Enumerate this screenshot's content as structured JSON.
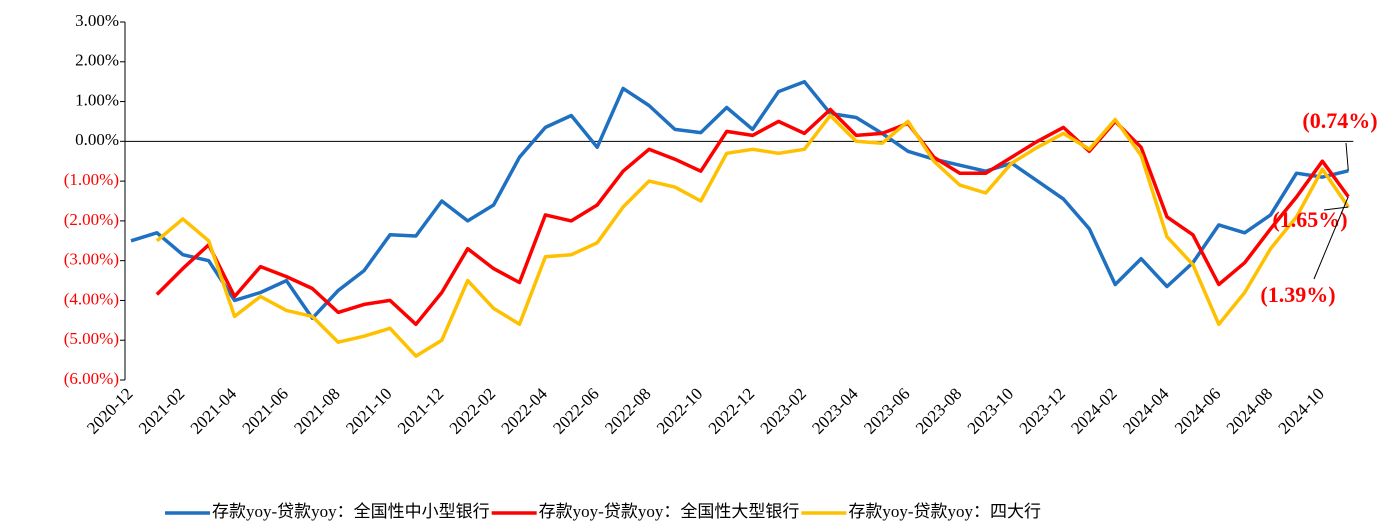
{
  "chart_data": {
    "type": "line",
    "categories": [
      "2020-12",
      null,
      "2021-02",
      null,
      "2021-04",
      null,
      "2021-06",
      null,
      "2021-08",
      null,
      "2021-10",
      null,
      "2021-12",
      null,
      "2022-02",
      null,
      "2022-04",
      null,
      "2022-06",
      null,
      "2022-08",
      null,
      "2022-10",
      null,
      "2022-12",
      null,
      "2023-02",
      null,
      "2023-04",
      null,
      "2023-06",
      null,
      "2023-08",
      null,
      "2023-10",
      null,
      "2023-12",
      null,
      "2024-02",
      null,
      "2024-04",
      null,
      "2024-06",
      null,
      "2024-08",
      null,
      "2024-10",
      null
    ],
    "series": [
      {
        "name": "存款yoy-贷款yoy：全国性中小型银行",
        "color": "#1f70c1",
        "values": [
          -2.5,
          -2.3,
          -2.85,
          -3.0,
          -4.0,
          -3.8,
          -3.5,
          -4.45,
          -3.75,
          -3.25,
          -2.35,
          -2.38,
          -1.5,
          -2.0,
          -1.6,
          -0.4,
          0.35,
          0.65,
          -0.15,
          1.33,
          0.9,
          0.3,
          0.22,
          0.85,
          0.3,
          1.25,
          1.5,
          0.7,
          0.6,
          0.2,
          -0.25,
          -0.45,
          -0.6,
          -0.75,
          -0.55,
          -1.0,
          -1.45,
          -2.2,
          -3.6,
          -2.95,
          -3.65,
          -3.05,
          -2.1,
          -2.3,
          -1.85,
          -0.8,
          -0.9,
          -0.74
        ]
      },
      {
        "name": "存款yoy-贷款yoy：全国性大型银行",
        "color": "#ff0000",
        "values": [
          null,
          -3.85,
          -3.2,
          -2.6,
          -3.9,
          -3.15,
          -3.4,
          -3.7,
          -4.3,
          -4.1,
          -4.0,
          -4.6,
          -3.8,
          -2.7,
          -3.2,
          -3.55,
          -1.85,
          -2.0,
          -1.6,
          -0.75,
          -0.2,
          -0.45,
          -0.75,
          0.25,
          0.15,
          0.5,
          0.2,
          0.8,
          0.15,
          0.2,
          0.45,
          -0.4,
          -0.8,
          -0.8,
          -0.4,
          0.0,
          0.35,
          -0.25,
          0.5,
          -0.15,
          -1.9,
          -2.35,
          -3.6,
          -3.05,
          -2.2,
          -1.4,
          -0.5,
          -1.39
        ]
      },
      {
        "name": "存款yoy-贷款yoy：四大行",
        "color": "#ffc000",
        "values": [
          null,
          -2.5,
          -1.95,
          -2.5,
          -4.4,
          -3.9,
          -4.25,
          -4.4,
          -5.05,
          -4.9,
          -4.7,
          -5.4,
          -5.0,
          -3.5,
          -4.2,
          -4.6,
          -2.9,
          -2.85,
          -2.55,
          -1.65,
          -1.0,
          -1.15,
          -1.5,
          -0.3,
          -0.2,
          -0.3,
          -0.2,
          0.65,
          0.0,
          -0.05,
          0.5,
          -0.5,
          -1.1,
          -1.3,
          -0.55,
          -0.15,
          0.2,
          -0.2,
          0.55,
          -0.35,
          -2.4,
          -3.1,
          -4.6,
          -3.8,
          -2.7,
          -1.9,
          -0.7,
          -1.65
        ]
      }
    ],
    "ylim": [
      -6,
      3
    ],
    "yticks": [
      {
        "value": 3,
        "label": "3.00%"
      },
      {
        "value": 2,
        "label": "2.00%"
      },
      {
        "value": 1,
        "label": "1.00%"
      },
      {
        "value": 0,
        "label": "0.00%"
      },
      {
        "value": -1,
        "label": "(1.00%)"
      },
      {
        "value": -2,
        "label": "(2.00%)"
      },
      {
        "value": -3,
        "label": "(3.00%)"
      },
      {
        "value": -4,
        "label": "(4.00%)"
      },
      {
        "value": -5,
        "label": "(5.00%)"
      },
      {
        "value": -6,
        "label": "(6.00%)"
      }
    ],
    "negative_tick_color": "#ff0000",
    "annotations": [
      {
        "text": "(0.74%)",
        "series": 0
      },
      {
        "text": "(1.65%)",
        "series": 2
      },
      {
        "text": "(1.39%)",
        "series": 1
      }
    ],
    "annotation_color": "#ff0000",
    "legend": "bottom"
  }
}
